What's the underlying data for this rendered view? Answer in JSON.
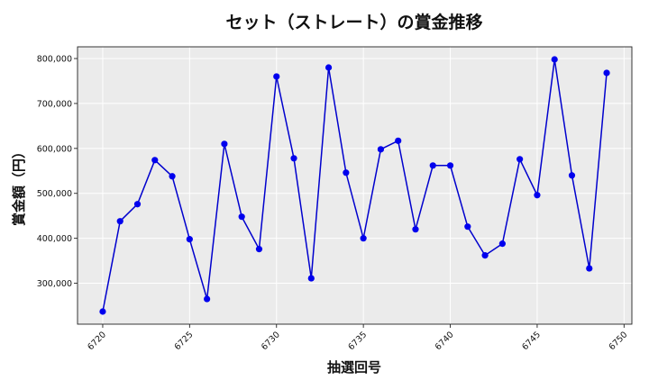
{
  "chart_data": {
    "type": "line",
    "title": "セット（ストレート）の賞金推移",
    "xlabel": "抽選回号",
    "ylabel": "賞金額（円）",
    "x": [
      6720,
      6721,
      6722,
      6723,
      6724,
      6725,
      6726,
      6727,
      6728,
      6729,
      6730,
      6731,
      6732,
      6733,
      6734,
      6735,
      6736,
      6737,
      6738,
      6739,
      6740,
      6741,
      6742,
      6743,
      6744,
      6745,
      6746,
      6747,
      6748,
      6749
    ],
    "series": [
      {
        "values": [
          237000,
          438000,
          476000,
          574000,
          538000,
          398000,
          265000,
          610000,
          448000,
          376000,
          760000,
          578000,
          311000,
          780000,
          546000,
          400000,
          598000,
          617000,
          420000,
          562000,
          562000,
          426000,
          362000,
          388000,
          576000,
          496000,
          798000,
          540000,
          333000,
          768000
        ]
      }
    ],
    "xlim": [
      6718.55,
      6750.45
    ],
    "ylim": [
      208950,
      826050
    ],
    "xticks": [
      6720,
      6725,
      6730,
      6735,
      6740,
      6745,
      6750
    ],
    "yticks": [
      300000,
      400000,
      500000,
      600000,
      700000,
      800000
    ],
    "ytick_labels": [
      "300,000",
      "400,000",
      "500,000",
      "600,000",
      "700,000",
      "800,000"
    ],
    "grid": true,
    "colors": {
      "line": "#0000cd",
      "marker": "#0000ee",
      "plot_bg": "#ebebeb",
      "grid": "#ffffff"
    }
  }
}
